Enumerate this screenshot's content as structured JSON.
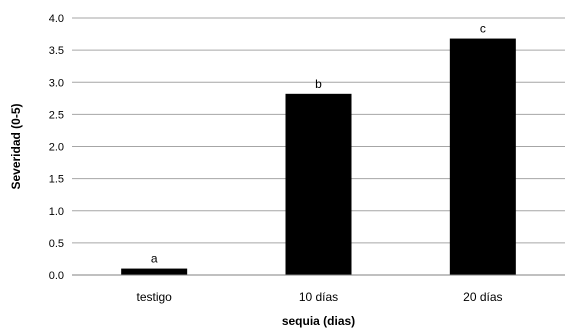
{
  "chart_data": {
    "type": "bar",
    "categories": [
      "testigo",
      "10 días",
      "20 días"
    ],
    "values": [
      0.1,
      2.82,
      3.68
    ],
    "data_labels": [
      "a",
      "b",
      "c"
    ],
    "xlabel": "sequia (dias)",
    "ylabel": "Severidad (0-5)",
    "ylim": [
      0,
      4
    ],
    "yticks": [
      "0.0",
      "0.5",
      "1.0",
      "1.5",
      "2.0",
      "2.5",
      "3.0",
      "3.5",
      "4.0"
    ],
    "grid": true,
    "bar_color": "#000000",
    "grid_color": "#a6a6a6"
  }
}
